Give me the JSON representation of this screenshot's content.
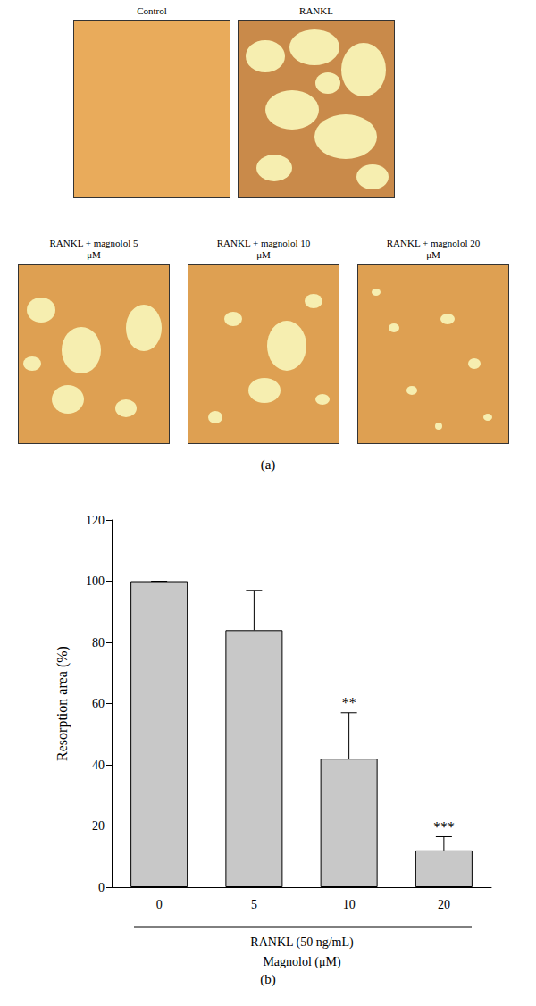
{
  "panel_a": {
    "label": "(a)",
    "images": [
      {
        "title": "Control"
      },
      {
        "title": "RANKL"
      },
      {
        "title": "RANKL + magnolol 5 μM"
      },
      {
        "title": "RANKL + magnolol 10 μM"
      },
      {
        "title": "RANKL + magnolol 20 μM"
      }
    ]
  },
  "chart_data": {
    "type": "bar",
    "categories": [
      "0",
      "5",
      "10",
      "20"
    ],
    "values": [
      100,
      84,
      42,
      12
    ],
    "errors": [
      0,
      13,
      15,
      4.5
    ],
    "significance": [
      null,
      null,
      "**",
      "***"
    ],
    "color": "#c8c8c8",
    "ylabel": "Resorption area (%)",
    "xlabel": "Magnolol (μM)",
    "group_label": "RANKL (50 ng/mL)",
    "ylim": [
      0,
      120
    ],
    "yticks": [
      0,
      20,
      40,
      60,
      80,
      100,
      120
    ],
    "grid": false
  },
  "panel_b_label": "(b)"
}
